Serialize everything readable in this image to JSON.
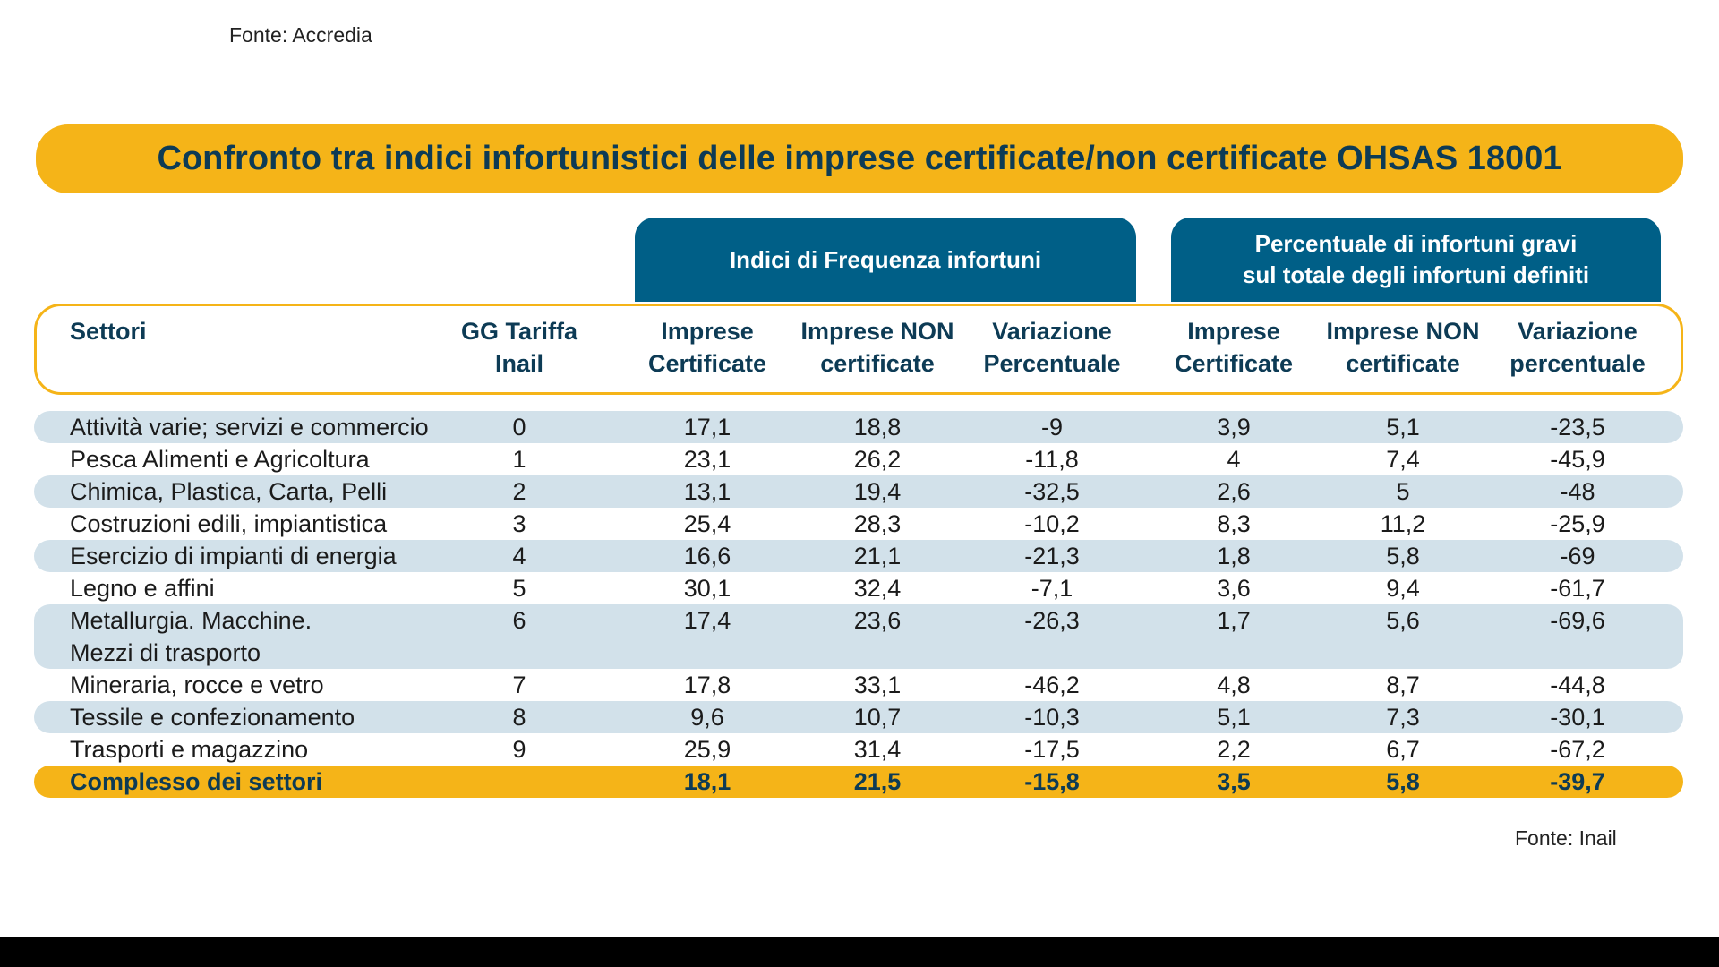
{
  "source_top": "Fonte: Accredia",
  "title": "Confronto tra indici infortunistici delle imprese certificate/non certificate OHSAS 18001",
  "groups": {
    "frequency": "Indici di Frequenza infortuni",
    "severe_line1": "Percentuale di infortuni gravi",
    "severe_line2": "sul totale degli infortuni definiti"
  },
  "columns": {
    "sector": "Settori",
    "tariff_l1": "GG Tariffa",
    "tariff_l2": "Inail",
    "f_cert_l1": "Imprese",
    "f_cert_l2": "Certificate",
    "f_non_l1": "Imprese NON",
    "f_non_l2": "certificate",
    "f_var_l1": "Variazione",
    "f_var_l2": "Percentuale",
    "g_cert_l1": "Imprese",
    "g_cert_l2": "Certificate",
    "g_non_l1": "Imprese NON",
    "g_non_l2": "certificate",
    "g_var_l1": "Variazione",
    "g_var_l2": "percentuale"
  },
  "rows": [
    {
      "name": "Attività varie; servizi e commercio",
      "gg": "0",
      "fc": "17,1",
      "fn": "18,8",
      "fv": "-9",
      "gc": "3,9",
      "gn": "5,1",
      "gv": "-23,5"
    },
    {
      "name": "Pesca Alimenti e Agricoltura",
      "gg": "1",
      "fc": "23,1",
      "fn": "26,2",
      "fv": "-11,8",
      "gc": "4",
      "gn": "7,4",
      "gv": "-45,9"
    },
    {
      "name": "Chimica, Plastica, Carta, Pelli",
      "gg": "2",
      "fc": "13,1",
      "fn": "19,4",
      "fv": "-32,5",
      "gc": "2,6",
      "gn": "5",
      "gv": "-48"
    },
    {
      "name": "Costruzioni edili, impiantistica",
      "gg": "3",
      "fc": "25,4",
      "fn": "28,3",
      "fv": "-10,2",
      "gc": "8,3",
      "gn": "11,2",
      "gv": "-25,9"
    },
    {
      "name": "Esercizio di impianti di energia",
      "gg": "4",
      "fc": "16,6",
      "fn": "21,1",
      "fv": "-21,3",
      "gc": "1,8",
      "gn": "5,8",
      "gv": "-69"
    },
    {
      "name": "Legno e affini",
      "gg": "5",
      "fc": "30,1",
      "fn": "32,4",
      "fv": "-7,1",
      "gc": "3,6",
      "gn": "9,4",
      "gv": "-61,7"
    },
    {
      "name": "Metallurgia. Macchine.",
      "name2": "Mezzi di trasporto",
      "gg": "6",
      "fc": "17,4",
      "fn": "23,6",
      "fv": "-26,3",
      "gc": "1,7",
      "gn": "5,6",
      "gv": "-69,6"
    },
    {
      "name": "Mineraria, rocce e vetro",
      "gg": "7",
      "fc": "17,8",
      "fn": "33,1",
      "fv": "-46,2",
      "gc": "4,8",
      "gn": "8,7",
      "gv": "-44,8"
    },
    {
      "name": "Tessile e confezionamento",
      "gg": "8",
      "fc": "9,6",
      "fn": "10,7",
      "fv": "-10,3",
      "gc": "5,1",
      "gn": "7,3",
      "gv": "-30,1"
    },
    {
      "name": "Trasporti e magazzino",
      "gg": "9",
      "fc": "25,9",
      "fn": "31,4",
      "fv": "-17,5",
      "gc": "2,2",
      "gn": "6,7",
      "gv": "-67,2"
    }
  ],
  "total": {
    "name": "Complesso dei settori",
    "gg": "",
    "fc": "18,1",
    "fn": "21,5",
    "fv": "-15,8",
    "gc": "3,5",
    "gn": "5,8",
    "gv": "-39,7"
  },
  "source_bottom": "Fonte: Inail",
  "colors": {
    "accent": "#f5b418",
    "header_blue": "#005f87",
    "row_shade": "#d2e1ea",
    "title_text": "#0d3b55"
  }
}
